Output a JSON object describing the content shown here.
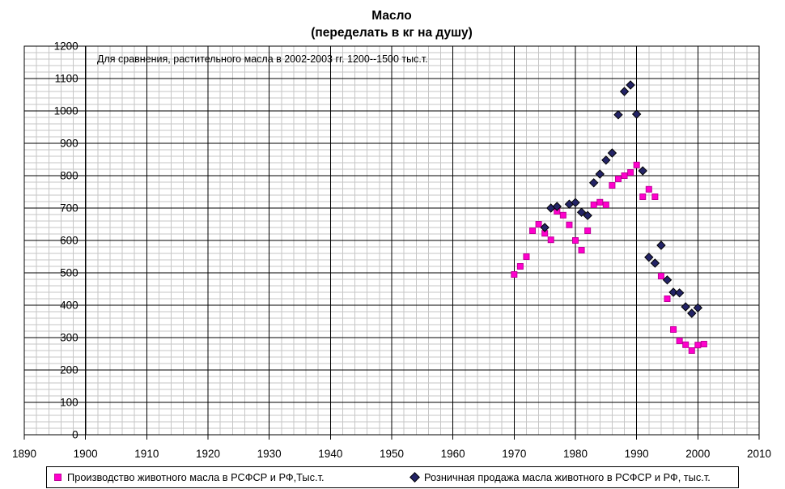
{
  "chart_data": {
    "type": "scatter",
    "title_line1": "Масло",
    "title_line2": "(переделать в кг на душу)",
    "annotation": "Для сравнения, растительного масла в 2002-2003 гг. 1200--1500 тыс.т.",
    "x_axis": {
      "min": 1890,
      "max": 2010,
      "major_step": 10,
      "minor_step": 2
    },
    "y_axis": {
      "min": 0,
      "max": 1200,
      "major_step": 100,
      "minor_step": 20
    },
    "axis_cross_x": 1900,
    "grid": {
      "minor_color": "#C6C6C6",
      "major_color": "#000000"
    },
    "series": [
      {
        "name": "Производство животного масла в РСФСР и РФ,Тыс.т.",
        "marker": "square",
        "fill": "#FF00CC",
        "stroke": "#BF0099",
        "points": [
          [
            1970,
            495
          ],
          [
            1971,
            520
          ],
          [
            1972,
            550
          ],
          [
            1973,
            630
          ],
          [
            1974,
            650
          ],
          [
            1975,
            622
          ],
          [
            1976,
            602
          ],
          [
            1977,
            690
          ],
          [
            1978,
            678
          ],
          [
            1979,
            648
          ],
          [
            1980,
            600
          ],
          [
            1981,
            570
          ],
          [
            1982,
            630
          ],
          [
            1983,
            710
          ],
          [
            1984,
            718
          ],
          [
            1985,
            710
          ],
          [
            1986,
            770
          ],
          [
            1987,
            790
          ],
          [
            1988,
            800
          ],
          [
            1989,
            810
          ],
          [
            1990,
            833
          ],
          [
            1991,
            735
          ],
          [
            1992,
            758
          ],
          [
            1993,
            735
          ],
          [
            1994,
            490
          ],
          [
            1995,
            420
          ],
          [
            1996,
            325
          ],
          [
            1997,
            290
          ],
          [
            1998,
            278
          ],
          [
            1999,
            260
          ],
          [
            2000,
            277
          ],
          [
            2001,
            280
          ]
        ]
      },
      {
        "name": "Розничная продажа масла животного в РСФСР и РФ, тыс.т.",
        "marker": "diamond",
        "fill": "#232366",
        "stroke": "#000000",
        "points": [
          [
            1975,
            640
          ],
          [
            1976,
            700
          ],
          [
            1977,
            705
          ],
          [
            1979,
            712
          ],
          [
            1980,
            717
          ],
          [
            1981,
            687
          ],
          [
            1982,
            677
          ],
          [
            1983,
            778
          ],
          [
            1984,
            805
          ],
          [
            1985,
            848
          ],
          [
            1986,
            870
          ],
          [
            1987,
            988
          ],
          [
            1988,
            1060
          ],
          [
            1989,
            1080
          ],
          [
            1990,
            990
          ],
          [
            1991,
            815
          ],
          [
            1992,
            548
          ],
          [
            1993,
            530
          ],
          [
            1994,
            585
          ],
          [
            1995,
            478
          ],
          [
            1996,
            440
          ],
          [
            1997,
            438
          ],
          [
            1998,
            395
          ],
          [
            1999,
            375
          ],
          [
            2000,
            392
          ]
        ]
      }
    ]
  },
  "legend": {
    "item1": "Производство животного масла в РСФСР и РФ,Тыс.т.",
    "item2": "Розничная продажа масла животного в РСФСР и РФ, тыс.т."
  }
}
